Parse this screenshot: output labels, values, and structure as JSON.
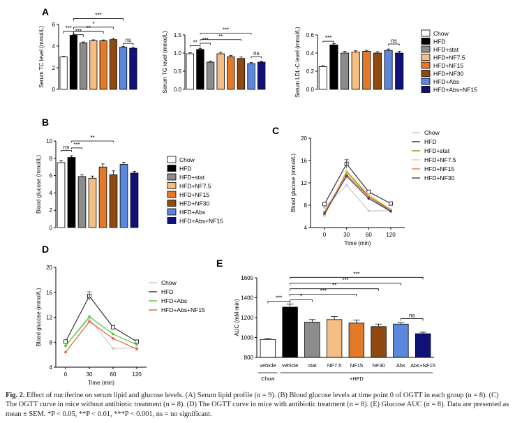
{
  "caption": {
    "label": "Fig. 2.",
    "text": "Effect of nuciferine on serum lipid and glucose levels. (A) Serum lipid profile (n = 9). (B) Blood glucose levels at time point 0 of OGTT in each group (n = 8). (C) The OGTT curve in mice without antibiotic treatment (n = 8). (D) The OGTT curve in mice with antibiotic treatment (n = 8). (E) Glucose AUC (n = 8). Data are presented as mean ± SEM. *P < 0.05, **P < 0.01, ***P < 0.001, ns = no significant."
  },
  "colors": {
    "Chow": "#ffffff",
    "HFD": "#000000",
    "HFD+stat": "#8c8c8c",
    "HFD+NF7.5": "#f5bf83",
    "HFD+NF15": "#e27a2a",
    "HFD+NF30": "#8f4a12",
    "HFD+Abs": "#5b87dc",
    "HFD+Abs+NF15": "#10127a"
  },
  "legend_A": [
    "Chow",
    "HFD",
    "HFD+stat",
    "HFD+NF7.5",
    "HFD+NF15",
    "HFD+NF30",
    "HFD+Abs",
    "HFD+Abs+NF15"
  ],
  "chart_data": [
    {
      "panel": "A",
      "type": "bar",
      "ylabel": "Serum TC level (mmol/L)",
      "ylim": [
        0,
        6
      ],
      "yticks": [
        "0",
        "2",
        "4",
        "6"
      ],
      "categories": [
        "Chow",
        "HFD",
        "HFD+stat",
        "HFD+NF7.5",
        "HFD+NF15",
        "HFD+NF30",
        "HFD+Abs",
        "HFD+Abs+NF15"
      ],
      "values": [
        3.0,
        5.0,
        4.3,
        4.5,
        4.5,
        4.6,
        3.9,
        3.8
      ],
      "errors": [
        0.05,
        0.1,
        0.08,
        0.08,
        0.07,
        0.1,
        0.06,
        0.08
      ],
      "significance": [
        "***",
        "***",
        "**",
        "*",
        "***",
        "ns"
      ]
    },
    {
      "panel": "A",
      "type": "bar",
      "ylabel": "Serum TG level (mmol/L)",
      "ylim": [
        0,
        1.5
      ],
      "yticks": [
        "0.0",
        "0.5",
        "1.0",
        "1.5"
      ],
      "categories": [
        "Chow",
        "HFD",
        "HFD+stat",
        "HFD+NF7.5",
        "HFD+NF15",
        "HFD+NF30",
        "HFD+Abs",
        "HFD+Abs+NF15"
      ],
      "values": [
        0.98,
        1.1,
        0.75,
        0.98,
        0.9,
        0.85,
        0.71,
        0.75
      ],
      "errors": [
        0.03,
        0.03,
        0.03,
        0.04,
        0.03,
        0.04,
        0.03,
        0.03
      ],
      "significance": [
        "**",
        "***",
        "**",
        "***",
        "ns"
      ]
    },
    {
      "panel": "A",
      "type": "bar",
      "ylabel": "Serum LDL-C level (mmol/L)",
      "ylim": [
        0,
        0.6
      ],
      "yticks": [
        "0.0",
        "0.2",
        "0.4",
        "0.6"
      ],
      "categories": [
        "Chow",
        "HFD",
        "HFD+stat",
        "HFD+NF7.5",
        "HFD+NF15",
        "HFD+NF30",
        "HFD+Abs",
        "HFD+Abs+NF15"
      ],
      "values": [
        0.25,
        0.49,
        0.4,
        0.41,
        0.42,
        0.4,
        0.43,
        0.4
      ],
      "errors": [
        0.01,
        0.015,
        0.02,
        0.015,
        0.01,
        0.015,
        0.015,
        0.02
      ],
      "significance": [
        "***",
        "ns"
      ]
    },
    {
      "panel": "B",
      "type": "bar",
      "ylabel": "Blood glucose (mmol/L)",
      "ylim": [
        0,
        10
      ],
      "yticks": [
        "0",
        "2",
        "4",
        "6",
        "8",
        "10"
      ],
      "categories": [
        "Chow",
        "HFD",
        "HFD+stat",
        "HFD+NF7.5",
        "HFD+NF15",
        "HFD+NF30",
        "HFD+Abs",
        "HFD+Abs+NF15"
      ],
      "values": [
        7.5,
        8.1,
        5.9,
        5.7,
        7.0,
        6.1,
        7.3,
        6.3
      ],
      "errors": [
        0.25,
        0.2,
        0.2,
        0.25,
        0.35,
        0.45,
        0.25,
        0.2
      ],
      "significance": [
        "ns",
        "***",
        "**"
      ]
    },
    {
      "panel": "C",
      "type": "line",
      "xlabel": "Time (min)",
      "ylabel": "Blood glucose (mmol/L)",
      "x": [
        0,
        30,
        60,
        120
      ],
      "xticks": [
        "0",
        "30",
        "60",
        "120"
      ],
      "ylim": [
        4,
        20
      ],
      "yticks": [
        "4",
        "8",
        "12",
        "16",
        "20"
      ],
      "series": [
        {
          "name": "Chow",
          "values": [
            7.6,
            11.6,
            7.0,
            7.0
          ],
          "color": "#c8c8c8"
        },
        {
          "name": "HFD",
          "values": [
            8.2,
            15.4,
            10.4,
            8.3
          ],
          "color": "#333333"
        },
        {
          "name": "HFD+stat",
          "values": [
            6.2,
            14.0,
            9.6,
            7.2
          ],
          "color": "#6e9a1e"
        },
        {
          "name": "HFD+NF7.5",
          "values": [
            6.3,
            14.2,
            9.9,
            7.3
          ],
          "color": "#f5c58c"
        },
        {
          "name": "HFD+NF15",
          "values": [
            6.8,
            13.5,
            9.5,
            7.0
          ],
          "color": "#e2792a"
        },
        {
          "name": "HFD+NF30",
          "values": [
            6.5,
            13.2,
            9.2,
            6.9
          ],
          "color": "#3a3a6a"
        }
      ]
    },
    {
      "panel": "D",
      "type": "line",
      "xlabel": "Time (min)",
      "ylabel": "Blood glucose (mmol/L)",
      "x": [
        0,
        30,
        60,
        120
      ],
      "xticks": [
        "0",
        "30",
        "60",
        "120"
      ],
      "ylim": [
        4,
        20
      ],
      "yticks": [
        "4",
        "8",
        "12",
        "16",
        "20"
      ],
      "series": [
        {
          "name": "Chow",
          "values": [
            7.5,
            11.8,
            7.0,
            7.1
          ],
          "color": "#c8c8c8"
        },
        {
          "name": "HFD",
          "values": [
            8.1,
            15.4,
            10.4,
            8.1
          ],
          "color": "#333333"
        },
        {
          "name": "HFD+Abs",
          "values": [
            7.4,
            12.1,
            9.3,
            7.6
          ],
          "color": "#4fc83a"
        },
        {
          "name": "HFD+Abs+NF15",
          "values": [
            6.4,
            11.3,
            8.6,
            6.9
          ],
          "color": "#e2603a"
        }
      ]
    },
    {
      "panel": "E",
      "type": "bar",
      "ylabel": "AUC (mM-min)",
      "ylim": [
        800,
        1600
      ],
      "yticks": [
        "800",
        "1000",
        "1200",
        "1400",
        "1600"
      ],
      "categories": [
        "vehicle",
        "vehicle",
        "stat",
        "NF7.5",
        "NF15",
        "NF30",
        "Abs",
        "Abs+NF15"
      ],
      "group_labels": [
        "Chow",
        "+HFD"
      ],
      "values": [
        980,
        1305,
        1155,
        1180,
        1145,
        1110,
        1135,
        1038
      ],
      "errors": [
        10,
        30,
        25,
        30,
        30,
        25,
        15,
        15
      ],
      "significance": [
        "***",
        "***",
        "***",
        "**",
        "***",
        "*",
        "ns"
      ]
    }
  ]
}
